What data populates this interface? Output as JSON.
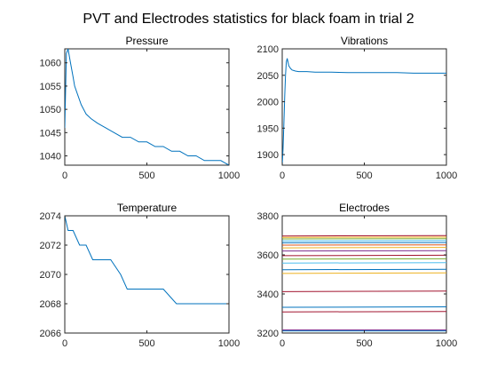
{
  "figure": {
    "title": "PVT and Electrodes statistics for black foam in trial 2",
    "series_color": "#0072BD"
  },
  "chart_data": [
    {
      "type": "line",
      "title": "Pressure",
      "xlim": [
        0,
        1000
      ],
      "ylim": [
        1038,
        1063
      ],
      "xticks": [
        0,
        500,
        1000
      ],
      "yticks": [
        1040,
        1045,
        1050,
        1055,
        1060
      ],
      "tick_labels_x": [
        "0",
        "500",
        "1000"
      ],
      "tick_labels_y": [
        "1040",
        "1045",
        "1050",
        "1055",
        "1060"
      ],
      "grid": false,
      "series": [
        {
          "color": "#0072BD",
          "x": [
            0,
            5,
            10,
            20,
            30,
            40,
            50,
            60,
            80,
            100,
            130,
            160,
            200,
            250,
            300,
            350,
            400,
            450,
            500,
            550,
            600,
            650,
            700,
            750,
            800,
            850,
            900,
            950,
            1000
          ],
          "values": [
            1046,
            1054,
            1062,
            1063,
            1061,
            1059,
            1057,
            1055,
            1053,
            1051,
            1049,
            1048,
            1047,
            1046,
            1045,
            1044,
            1044,
            1043,
            1043,
            1042,
            1042,
            1041,
            1041,
            1040,
            1040,
            1039,
            1039,
            1039,
            1038
          ]
        }
      ]
    },
    {
      "type": "line",
      "title": "Vibrations",
      "xlim": [
        0,
        1000
      ],
      "ylim": [
        1880,
        2100
      ],
      "xticks": [
        0,
        500,
        1000
      ],
      "yticks": [
        1900,
        1950,
        2000,
        2050,
        2100
      ],
      "tick_labels_x": [
        "0",
        "500",
        "1000"
      ],
      "tick_labels_y": [
        "1900",
        "1950",
        "2000",
        "2050",
        "2100"
      ],
      "grid": false,
      "series": [
        {
          "color": "#0072BD",
          "x": [
            0,
            5,
            10,
            15,
            20,
            25,
            30,
            35,
            40,
            50,
            60,
            80,
            100,
            150,
            200,
            300,
            400,
            500,
            600,
            700,
            800,
            900,
            1000
          ],
          "values": [
            1880,
            1910,
            1960,
            2010,
            2050,
            2075,
            2082,
            2075,
            2068,
            2063,
            2060,
            2058,
            2057,
            2057,
            2056,
            2056,
            2055,
            2055,
            2055,
            2055,
            2054,
            2054,
            2054
          ]
        }
      ]
    },
    {
      "type": "line",
      "title": "Temperature",
      "xlim": [
        0,
        1000
      ],
      "ylim": [
        2066,
        2074
      ],
      "xticks": [
        0,
        500,
        1000
      ],
      "yticks": [
        2066,
        2068,
        2070,
        2072,
        2074
      ],
      "tick_labels_x": [
        "0",
        "500",
        "1000"
      ],
      "tick_labels_y": [
        "2066",
        "2068",
        "2070",
        "2072",
        "2074"
      ],
      "grid": false,
      "series": [
        {
          "color": "#0072BD",
          "x": [
            0,
            20,
            50,
            90,
            130,
            170,
            220,
            280,
            340,
            380,
            450,
            520,
            600,
            680,
            760,
            840,
            920,
            1000
          ],
          "values": [
            2074,
            2073,
            2073,
            2072,
            2072,
            2071,
            2071,
            2071,
            2070,
            2069,
            2069,
            2069,
            2069,
            2068,
            2068,
            2068,
            2068,
            2068
          ]
        }
      ]
    },
    {
      "type": "line",
      "title": "Electrodes",
      "xlim": [
        0,
        1000
      ],
      "ylim": [
        3200,
        3800
      ],
      "xticks": [
        0,
        500,
        1000
      ],
      "yticks": [
        3200,
        3400,
        3600,
        3800
      ],
      "tick_labels_x": [
        "0",
        "500",
        "1000"
      ],
      "tick_labels_y": [
        "3200",
        "3400",
        "3600",
        "3800"
      ],
      "grid": false,
      "series": [
        {
          "color": "#A2142F",
          "x": [
            0,
            1000
          ],
          "values": [
            3697,
            3699
          ]
        },
        {
          "color": "#EDB120",
          "x": [
            0,
            1000
          ],
          "values": [
            3690,
            3691
          ]
        },
        {
          "color": "#77AC30",
          "x": [
            0,
            1000
          ],
          "values": [
            3682,
            3683
          ]
        },
        {
          "color": "#4DBEEE",
          "x": [
            0,
            1000
          ],
          "values": [
            3672,
            3673
          ]
        },
        {
          "color": "#0072BD",
          "x": [
            0,
            1000
          ],
          "values": [
            3662,
            3663
          ]
        },
        {
          "color": "#D95319",
          "x": [
            0,
            1000
          ],
          "values": [
            3650,
            3651
          ]
        },
        {
          "color": "#EDB120",
          "x": [
            0,
            1000
          ],
          "values": [
            3636,
            3638
          ]
        },
        {
          "color": "#7E2F8E",
          "x": [
            0,
            1000
          ],
          "values": [
            3620,
            3622
          ]
        },
        {
          "color": "#A2142F",
          "x": [
            0,
            1000
          ],
          "values": [
            3596,
            3598
          ]
        },
        {
          "color": "#77AC30",
          "x": [
            0,
            1000
          ],
          "values": [
            3578,
            3580
          ]
        },
        {
          "color": "#4DBEEE",
          "x": [
            0,
            1000
          ],
          "values": [
            3558,
            3560
          ]
        },
        {
          "color": "#0072BD",
          "x": [
            0,
            1000
          ],
          "values": [
            3524,
            3526
          ]
        },
        {
          "color": "#EDB120",
          "x": [
            0,
            1000
          ],
          "values": [
            3505,
            3508
          ]
        },
        {
          "color": "#A2142F",
          "x": [
            0,
            1000
          ],
          "values": [
            3412,
            3415
          ]
        },
        {
          "color": "#0072BD",
          "x": [
            0,
            1000
          ],
          "values": [
            3332,
            3334
          ]
        },
        {
          "color": "#A2142F",
          "x": [
            0,
            1000
          ],
          "values": [
            3308,
            3310
          ]
        },
        {
          "color": "#7E2F8E",
          "x": [
            0,
            1000
          ],
          "values": [
            3216,
            3216
          ]
        },
        {
          "color": "#0072BD",
          "x": [
            0,
            1000
          ],
          "values": [
            3211,
            3211
          ]
        }
      ]
    }
  ]
}
